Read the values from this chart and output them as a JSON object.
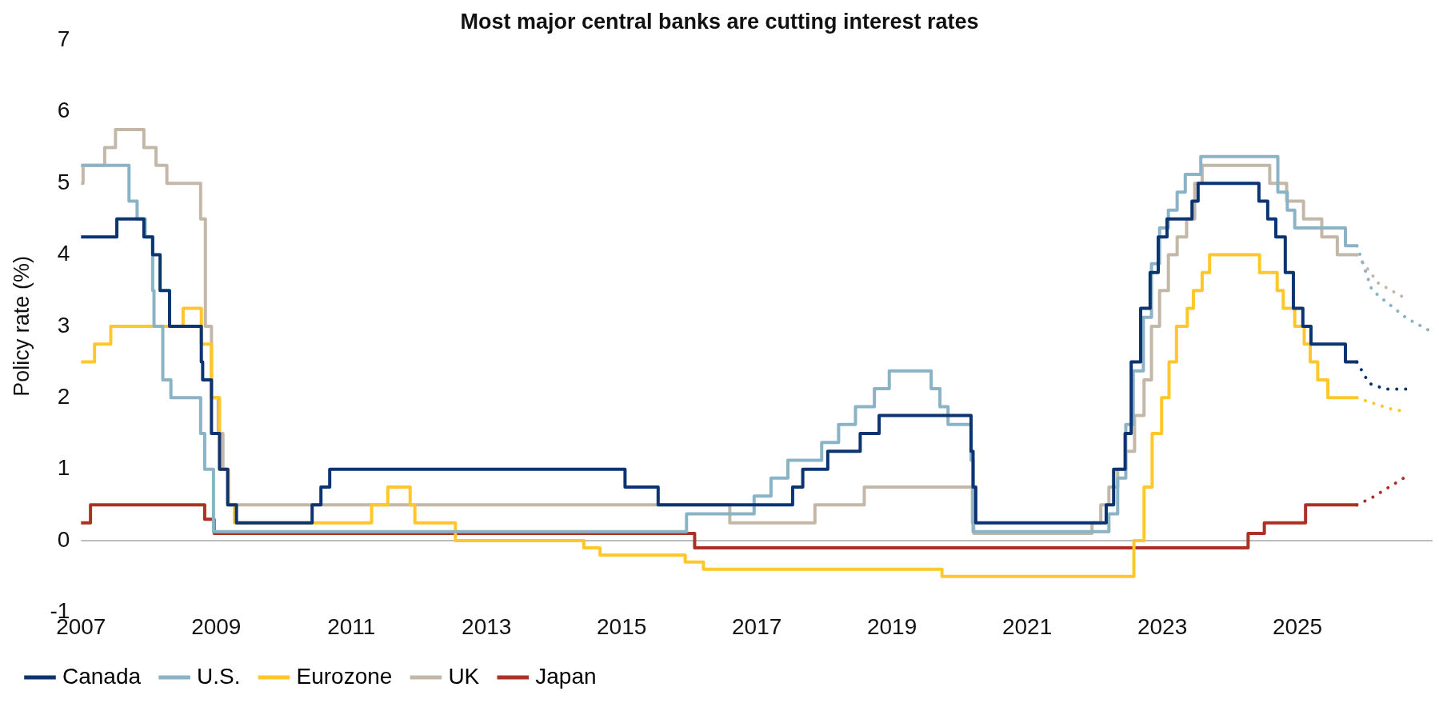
{
  "chart_data": {
    "type": "step",
    "title": "Most major central banks are cutting interest rates",
    "ylabel": "Policy rate (%)",
    "xlim": [
      2007,
      2027
    ],
    "xticks": [
      2007,
      2009,
      2011,
      2013,
      2015,
      2017,
      2019,
      2021,
      2023,
      2025
    ],
    "ylim": [
      -1,
      7
    ],
    "yticks": [
      -1,
      0,
      1,
      2,
      3,
      4,
      5,
      6,
      7
    ],
    "legend": "bottom",
    "marker": "none",
    "ref_lines": [
      {
        "axis": "y",
        "value": 0,
        "color": "#a6a6a6"
      }
    ],
    "series": [
      {
        "name": "Canada",
        "color": "#0b3470",
        "x": [
          2007.0,
          2007.53,
          2007.93,
          2008.06,
          2008.17,
          2008.31,
          2008.78,
          2008.8,
          2008.93,
          2009.05,
          2009.17,
          2009.3,
          2010.42,
          2010.55,
          2010.68,
          2015.05,
          2015.54,
          2017.53,
          2017.68,
          2018.05,
          2018.53,
          2018.81,
          2020.17,
          2020.2,
          2020.24,
          2022.17,
          2022.28,
          2022.45,
          2022.54,
          2022.68,
          2022.82,
          2022.94,
          2023.07,
          2023.44,
          2023.53,
          2024.43,
          2024.56,
          2024.68,
          2024.82,
          2024.94,
          2025.08,
          2025.2,
          2025.71,
          2025.88
        ],
        "values": [
          4.25,
          4.5,
          4.25,
          4.0,
          3.5,
          3.0,
          2.5,
          2.25,
          1.5,
          1.0,
          0.5,
          0.25,
          0.5,
          0.75,
          1.0,
          0.75,
          0.5,
          0.75,
          1.0,
          1.25,
          1.5,
          1.75,
          1.25,
          0.75,
          0.25,
          0.5,
          1.0,
          1.5,
          2.5,
          3.25,
          3.75,
          4.25,
          4.5,
          4.75,
          5.0,
          4.75,
          4.5,
          4.25,
          3.75,
          3.25,
          3.0,
          2.75,
          2.5,
          2.5
        ]
      },
      {
        "name": "U.S.",
        "color": "#8ab3c6",
        "x": [
          2007.0,
          2007.71,
          2007.83,
          2007.95,
          2008.06,
          2008.08,
          2008.21,
          2008.33,
          2008.77,
          2008.83,
          2008.96,
          2015.96,
          2016.96,
          2017.21,
          2017.46,
          2017.96,
          2018.21,
          2018.46,
          2018.74,
          2018.96,
          2019.58,
          2019.71,
          2019.83,
          2020.17,
          2020.2,
          2022.21,
          2022.34,
          2022.46,
          2022.57,
          2022.72,
          2022.84,
          2022.96,
          2023.09,
          2023.22,
          2023.34,
          2023.57,
          2024.71,
          2024.85,
          2024.96,
          2025.71,
          2025.88
        ],
        "values": [
          5.25,
          4.75,
          4.5,
          4.25,
          3.5,
          3.0,
          2.25,
          2.0,
          1.5,
          1.0,
          0.125,
          0.375,
          0.625,
          0.875,
          1.125,
          1.375,
          1.625,
          1.875,
          2.125,
          2.375,
          2.125,
          1.875,
          1.625,
          1.125,
          0.125,
          0.375,
          0.875,
          1.625,
          2.375,
          3.125,
          3.875,
          4.375,
          4.625,
          4.875,
          5.125,
          5.375,
          4.875,
          4.625,
          4.375,
          4.125,
          4.125
        ]
      },
      {
        "name": "Eurozone",
        "color": "#ffc72c",
        "x": [
          2007.0,
          2007.2,
          2007.44,
          2008.51,
          2008.78,
          2008.93,
          2009.05,
          2009.18,
          2009.27,
          2011.3,
          2011.54,
          2011.87,
          2011.94,
          2012.54,
          2014.44,
          2014.68,
          2015.94,
          2016.21,
          2019.74,
          2022.58,
          2022.73,
          2022.85,
          2022.99,
          2023.1,
          2023.21,
          2023.37,
          2023.46,
          2023.59,
          2023.7,
          2024.44,
          2024.7,
          2024.79,
          2024.96,
          2025.1,
          2025.19,
          2025.3,
          2025.45,
          2025.88
        ],
        "values": [
          2.5,
          2.75,
          3.0,
          3.25,
          2.75,
          2.0,
          1.0,
          0.5,
          0.25,
          0.5,
          0.75,
          0.5,
          0.25,
          0.0,
          -0.1,
          -0.2,
          -0.3,
          -0.4,
          -0.5,
          0.0,
          0.75,
          1.5,
          2.0,
          2.5,
          3.0,
          3.25,
          3.5,
          3.75,
          4.0,
          3.75,
          3.5,
          3.25,
          3.0,
          2.75,
          2.5,
          2.25,
          2.0,
          2.0
        ]
      },
      {
        "name": "UK",
        "color": "#c3b8a8",
        "x": [
          2007.0,
          2007.03,
          2007.35,
          2007.51,
          2007.93,
          2008.11,
          2008.27,
          2008.77,
          2008.84,
          2008.93,
          2009.03,
          2009.1,
          2009.18,
          2016.6,
          2017.86,
          2018.59,
          2020.19,
          2020.21,
          2021.96,
          2022.09,
          2022.21,
          2022.34,
          2022.46,
          2022.59,
          2022.73,
          2022.84,
          2022.96,
          2023.09,
          2023.22,
          2023.36,
          2023.48,
          2023.59,
          2024.59,
          2024.84,
          2025.09,
          2025.36,
          2025.59,
          2025.88
        ],
        "values": [
          5.0,
          5.25,
          5.5,
          5.75,
          5.5,
          5.25,
          5.0,
          4.5,
          3.0,
          2.0,
          1.5,
          1.0,
          0.5,
          0.25,
          0.5,
          0.75,
          0.25,
          0.1,
          0.25,
          0.5,
          0.75,
          1.0,
          1.25,
          1.75,
          2.25,
          3.0,
          3.5,
          4.0,
          4.25,
          4.5,
          5.0,
          5.25,
          5.0,
          4.75,
          4.5,
          4.25,
          4.0,
          4.0
        ]
      },
      {
        "name": "Japan",
        "color": "#a93226",
        "x": [
          2007.0,
          2007.14,
          2008.83,
          2008.97,
          2016.08,
          2024.27,
          2024.51,
          2025.12,
          2025.88
        ],
        "values": [
          0.25,
          0.5,
          0.3,
          0.1,
          -0.1,
          0.1,
          0.25,
          0.5,
          0.5
        ]
      },
      {
        "type": "line",
        "line_style": "dotted",
        "color": "#0b3470",
        "x": [
          2025.88,
          2026.06,
          2026.3,
          2026.73
        ],
        "values": [
          2.5,
          2.2,
          2.12,
          2.12
        ]
      },
      {
        "type": "line",
        "line_style": "dotted",
        "color": "#8ab3c6",
        "x": [
          2025.88,
          2026.1,
          2026.3,
          2026.62,
          2026.95
        ],
        "values": [
          4.125,
          3.51,
          3.35,
          3.11,
          2.94
        ]
      },
      {
        "type": "line",
        "line_style": "dotted",
        "color": "#ffc72c",
        "x": [
          2025.88,
          2026.35,
          2026.63
        ],
        "values": [
          2.0,
          1.85,
          1.8
        ]
      },
      {
        "type": "line",
        "line_style": "dotted",
        "color": "#c3b8a8",
        "x": [
          2025.88,
          2026.2,
          2026.58
        ],
        "values": [
          4.0,
          3.6,
          3.4
        ]
      },
      {
        "type": "line",
        "line_style": "dotted",
        "color": "#a93226",
        "x": [
          2025.88,
          2026.1,
          2026.58
        ],
        "values": [
          0.5,
          0.6,
          0.88
        ]
      }
    ]
  }
}
